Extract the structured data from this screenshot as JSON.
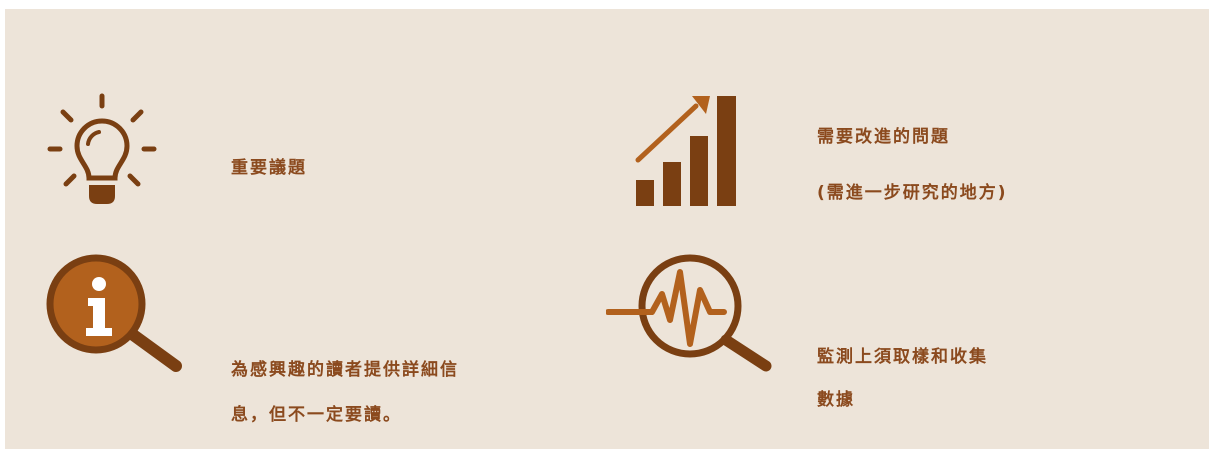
{
  "legend": {
    "important": {
      "icon": "lightbulb-icon",
      "text": "重要議題"
    },
    "improvement": {
      "icon": "growth-chart-icon",
      "line1": "需要改進的問題",
      "line2": "(需進一步研究的地方)"
    },
    "info": {
      "icon": "info-magnifier-icon",
      "line1": "為感興趣的讀者提供詳細信",
      "line2": "息，但不一定要讀。"
    },
    "monitoring": {
      "icon": "pulse-magnifier-icon",
      "line1": "監測上須取樣和收集",
      "line2": "數據"
    }
  },
  "colors": {
    "background": "#ede4d9",
    "dark_brown": "#7a3f12",
    "accent_orange": "#b2611d",
    "text": "#8b4a1e"
  }
}
